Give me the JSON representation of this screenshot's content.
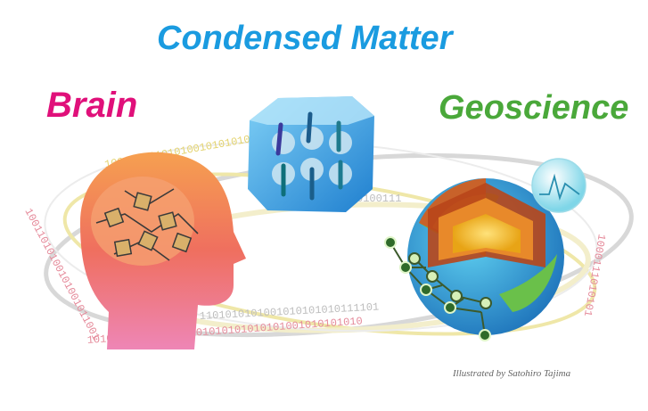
{
  "titles": {
    "condensed_matter": "Condensed Matter",
    "brain": "Brain",
    "geoscience": "Geoscience"
  },
  "credit": "Illustrated by Satohiro Tajima",
  "binary_strings": {
    "top_arc": "1001101010101001010101010",
    "left_arc": "10011010100101001011001",
    "mid_arc": "1101010101001010101010111101",
    "bottom_arc": "1010101111001010101010101010101001010101010",
    "right_arc": "1000111010101",
    "cube_arc": "0100111"
  },
  "colors": {
    "condensed_matter": "#1a9be0",
    "brain": "#e0107a",
    "geoscience": "#4aa83a",
    "head": "#f07a60",
    "cube": "#2a8fd6",
    "earth_ocean": "#2f9fd8",
    "core": "#f4c52a"
  },
  "icons": [
    "human-head-icon",
    "spin-cube-icon",
    "earth-cutaway-icon",
    "network-chain-icon",
    "signal-sphere-icon"
  ]
}
